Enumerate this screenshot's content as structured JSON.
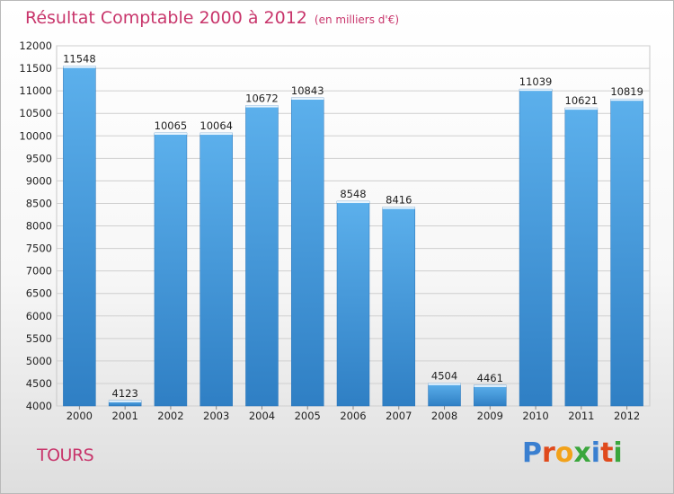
{
  "title": "Résultat Comptable 2000 à 2012",
  "unit": "(en milliers d'€)",
  "city": "TOURS",
  "logo": {
    "text": "Proxiti"
  },
  "colors": {
    "bar": "#3d8fd3",
    "bar_light": "#5aadea",
    "title": "#c8356b",
    "grid": "#c8c8c8"
  },
  "chart_data": {
    "type": "bar",
    "categories": [
      "2000",
      "2001",
      "2002",
      "2003",
      "2004",
      "2005",
      "2006",
      "2007",
      "2008",
      "2009",
      "2010",
      "2011",
      "2012"
    ],
    "values": [
      11548,
      4123,
      10065,
      10064,
      10672,
      10843,
      8548,
      8416,
      4504,
      4461,
      11039,
      10621,
      10819
    ],
    "ylim": [
      4000,
      12000
    ],
    "yticks": [
      4000,
      4500,
      5000,
      5500,
      6000,
      6500,
      7000,
      7500,
      8000,
      8500,
      9000,
      9500,
      10000,
      10500,
      11000,
      11500,
      12000
    ],
    "grid": true
  }
}
